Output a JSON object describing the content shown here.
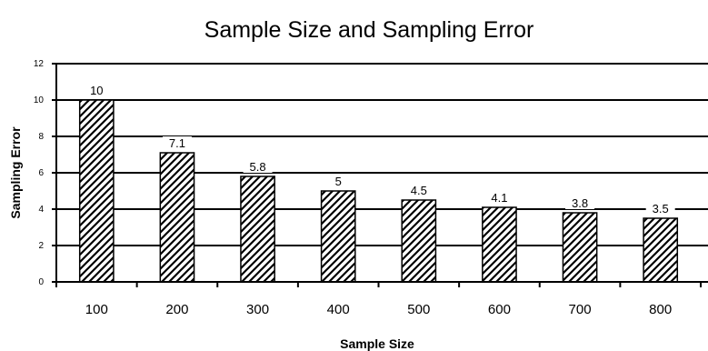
{
  "chart_data": {
    "type": "bar",
    "title": "Sample Size and Sampling Error",
    "xlabel": "Sample Size",
    "ylabel": "Sampling Error",
    "categories": [
      "100",
      "200",
      "300",
      "400",
      "500",
      "600",
      "700",
      "800"
    ],
    "values": [
      10,
      7.1,
      5.8,
      5,
      4.5,
      4.1,
      3.8,
      3.5
    ],
    "data_labels": [
      "10",
      "7.1",
      "5.8",
      "5",
      "4.5",
      "4.1",
      "3.8",
      "3.5"
    ],
    "y_ticks": [
      "0",
      "2",
      "4",
      "6",
      "8",
      "10",
      "12"
    ],
    "ylim": [
      0,
      12
    ],
    "grid": true,
    "legend": "none",
    "bar_fill": "diagonal-hatch"
  }
}
